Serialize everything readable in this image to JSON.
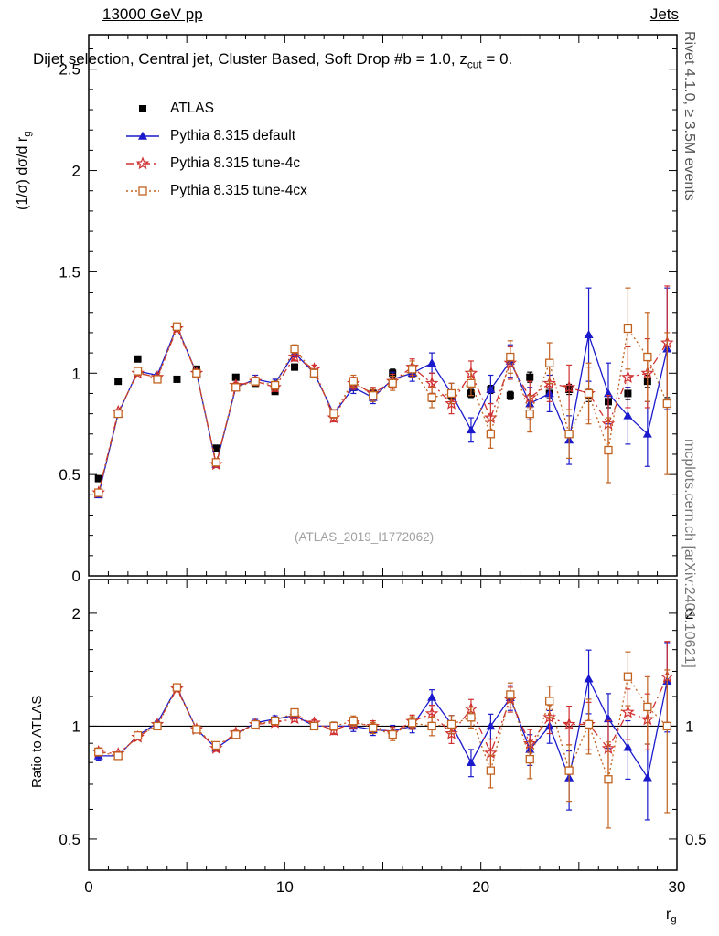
{
  "header": {
    "left": "13000 GeV pp",
    "right": "Jets"
  },
  "title": {
    "part1": "Dijet selection, Central jet, Cluster Based, Soft Drop #b = 1.0, z",
    "sub": "cut",
    "part2": " = 0."
  },
  "side_texts": {
    "top_right": "Rivet 4.1.0, ≥ 3.5M events",
    "bottom_right": "mcplots.cern.ch [arXiv:2401.10621]"
  },
  "watermark": "(ATLAS_2019_I1772062)",
  "axes": {
    "y_label": "(1/σ) dσ/d r",
    "y_label_sub": "g",
    "ratio_label": "Ratio to ATLAS",
    "x_label": "r",
    "x_label_sub": "g"
  },
  "chart_data": {
    "type": "line",
    "xlabel": "r_g",
    "ylabel": "(1/sigma) dsigma/d r_g",
    "xlim": [
      0,
      30
    ],
    "ylim_main": [
      0,
      2.67
    ],
    "yticks_main": [
      0,
      0.5,
      1,
      1.5,
      2,
      2.5
    ],
    "xticks": [
      0,
      10,
      20,
      30
    ],
    "ratio": {
      "reference": "ATLAS",
      "log": true,
      "ylim": [
        0.413,
        2.46
      ],
      "yticks": [
        0.5,
        1,
        2
      ],
      "minor_ticks": [
        0.6,
        0.7,
        0.8,
        0.9,
        1.2,
        1.4,
        1.6,
        1.8
      ]
    },
    "x": [
      0.5,
      1.5,
      2.5,
      3.5,
      4.5,
      5.5,
      6.5,
      7.5,
      8.5,
      9.5,
      10.5,
      11.5,
      12.5,
      13.5,
      14.5,
      15.5,
      16.5,
      17.5,
      18.5,
      19.5,
      20.5,
      21.5,
      22.5,
      23.5,
      24.5,
      25.5,
      26.5,
      27.5,
      28.5,
      29.5
    ],
    "series": [
      {
        "name": "ATLAS",
        "marker": "square",
        "line": "none",
        "color": "#000000",
        "values": [
          0.48,
          0.96,
          1.07,
          0.97,
          0.97,
          1.02,
          0.63,
          0.98,
          0.95,
          0.91,
          1.03,
          1.0,
          0.8,
          0.93,
          0.9,
          1.0,
          1.0,
          0.88,
          0.89,
          0.9,
          0.92,
          0.89,
          0.98,
          0.9,
          0.92,
          0.89,
          0.86,
          0.9,
          0.96,
          0.85
        ],
        "errors": [
          0.01,
          0.01,
          0.01,
          0.01,
          0.01,
          0.01,
          0.01,
          0.01,
          0.01,
          0.01,
          0.015,
          0.015,
          0.015,
          0.015,
          0.015,
          0.02,
          0.02,
          0.02,
          0.02,
          0.02,
          0.02,
          0.02,
          0.025,
          0.025,
          0.025,
          0.03,
          0.03,
          0.03,
          0.03,
          0.03
        ]
      },
      {
        "name": "Pythia 8.315 default",
        "marker": "triangle",
        "line": "solid",
        "color": "#1a1acc",
        "values": [
          0.4,
          0.8,
          1.01,
          0.99,
          1.23,
          1.0,
          0.55,
          0.93,
          0.97,
          0.95,
          1.1,
          1.0,
          0.8,
          0.93,
          0.88,
          0.97,
          1.0,
          1.05,
          0.9,
          0.72,
          0.92,
          1.06,
          0.85,
          0.9,
          0.67,
          1.19,
          0.9,
          0.79,
          0.7,
          1.12
        ],
        "errors": [
          0.01,
          0.01,
          0.01,
          0.01,
          0.015,
          0.015,
          0.01,
          0.015,
          0.02,
          0.02,
          0.02,
          0.02,
          0.02,
          0.03,
          0.03,
          0.035,
          0.04,
          0.05,
          0.05,
          0.06,
          0.07,
          0.08,
          0.08,
          0.09,
          0.12,
          0.23,
          0.15,
          0.14,
          0.16,
          0.3
        ]
      },
      {
        "name": "Pythia 8.315 tune-4c",
        "marker": "star",
        "line": "dashdot",
        "color": "#d03030",
        "values": [
          0.41,
          0.81,
          1.0,
          0.98,
          1.22,
          1.0,
          0.55,
          0.94,
          0.96,
          0.93,
          1.08,
          1.02,
          0.78,
          0.95,
          0.9,
          0.96,
          1.03,
          0.95,
          0.85,
          1.0,
          0.78,
          1.05,
          0.88,
          0.95,
          0.93,
          0.9,
          0.75,
          0.98,
          1.0,
          1.15
        ],
        "errors": [
          0.01,
          0.01,
          0.01,
          0.01,
          0.015,
          0.015,
          0.01,
          0.015,
          0.02,
          0.02,
          0.02,
          0.02,
          0.02,
          0.03,
          0.03,
          0.035,
          0.04,
          0.05,
          0.05,
          0.06,
          0.07,
          0.08,
          0.08,
          0.09,
          0.11,
          0.13,
          0.14,
          0.15,
          0.17,
          0.28
        ]
      },
      {
        "name": "Pythia 8.315 tune-4cx",
        "marker": "open-square",
        "line": "dotted",
        "color": "#c2621f",
        "values": [
          0.41,
          0.8,
          1.01,
          0.97,
          1.23,
          1.0,
          0.56,
          0.93,
          0.96,
          0.94,
          1.12,
          1.0,
          0.8,
          0.96,
          0.89,
          0.95,
          1.02,
          0.88,
          0.9,
          0.95,
          0.7,
          1.08,
          0.8,
          1.05,
          0.7,
          0.9,
          0.62,
          1.22,
          1.08,
          0.85
        ],
        "errors": [
          0.01,
          0.01,
          0.01,
          0.01,
          0.015,
          0.015,
          0.01,
          0.015,
          0.02,
          0.02,
          0.02,
          0.02,
          0.02,
          0.03,
          0.03,
          0.035,
          0.04,
          0.05,
          0.05,
          0.06,
          0.07,
          0.08,
          0.09,
          0.1,
          0.12,
          0.15,
          0.16,
          0.2,
          0.22,
          0.35
        ]
      }
    ]
  }
}
